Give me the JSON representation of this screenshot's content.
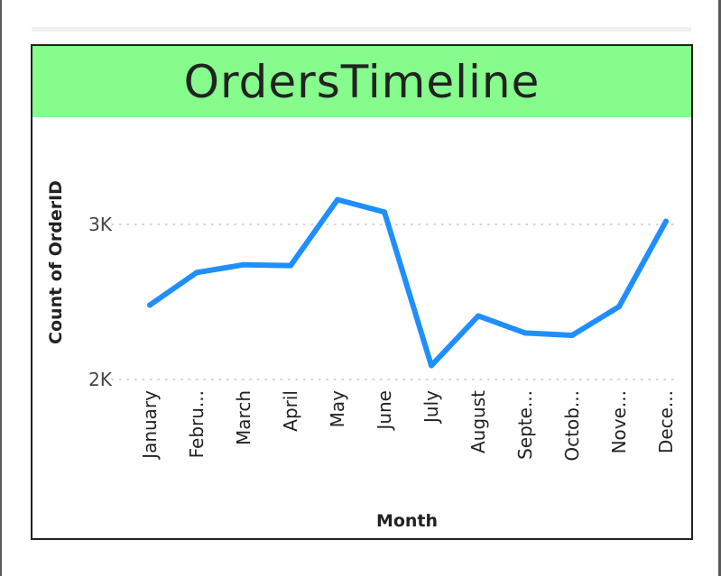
{
  "colors": {
    "title_background": "#85fc8c",
    "line": "#1f8fff",
    "text": "#222222",
    "axis_text": "#444444",
    "gridline": "#c8c8c8"
  },
  "chart_data": {
    "type": "line",
    "title": "OrdersTimeline",
    "xlabel": "Month",
    "ylabel": "Count of OrderID",
    "ylim": [
      2000,
      3000
    ],
    "yticks": [
      "2K",
      "3K"
    ],
    "ytick_values": [
      2000,
      3000
    ],
    "grid": "horizontal-dotted",
    "categories": [
      "January",
      "Febru...",
      "March",
      "April",
      "May",
      "June",
      "July",
      "August",
      "Septe...",
      "Octob...",
      "Nove...",
      "Dece..."
    ],
    "series": [
      {
        "values": [
          2480,
          2690,
          2740,
          2735,
          3160,
          3080,
          2090,
          2410,
          2300,
          2285,
          2470,
          3020
        ]
      }
    ]
  }
}
